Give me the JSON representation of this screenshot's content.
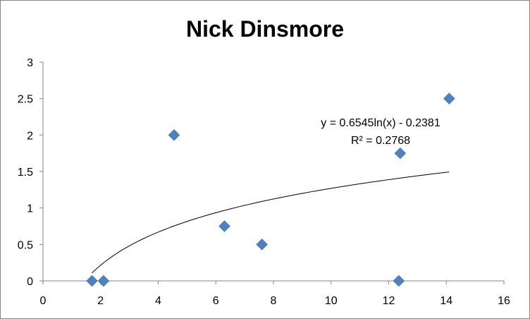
{
  "chart_data": {
    "type": "scatter",
    "title": "Nick Dinsmore",
    "xlabel": "",
    "ylabel": "",
    "xlim": [
      0,
      16
    ],
    "ylim": [
      0,
      3
    ],
    "xticks": [
      0,
      2,
      4,
      6,
      8,
      10,
      12,
      14,
      16
    ],
    "yticks": [
      0,
      0.5,
      1,
      1.5,
      2,
      2.5,
      3
    ],
    "xtick_labels": [
      "0",
      "2",
      "4",
      "6",
      "8",
      "10",
      "12",
      "14",
      "16"
    ],
    "ytick_labels": [
      "0",
      "0.5",
      "1",
      "1.5",
      "2",
      "2.5",
      "3"
    ],
    "grid": false,
    "marker_color": "#4f81bd",
    "trendline_color": "#000000",
    "series": [
      {
        "points": [
          {
            "x": 1.7,
            "y": 0
          },
          {
            "x": 2.1,
            "y": 0
          },
          {
            "x": 4.55,
            "y": 2
          },
          {
            "x": 6.3,
            "y": 0.75
          },
          {
            "x": 7.6,
            "y": 0.5
          },
          {
            "x": 12.35,
            "y": 0
          },
          {
            "x": 12.4,
            "y": 1.75
          },
          {
            "x": 14.1,
            "y": 2.5
          }
        ]
      }
    ],
    "trendline": {
      "type": "logarithmic",
      "a": 0.6545,
      "b": -0.2381,
      "x_start": 1.7,
      "x_end": 14.1,
      "equation_label": "y = 0.6545ln(x) - 0.2381",
      "r2_label": "R² = 0.2768"
    }
  }
}
